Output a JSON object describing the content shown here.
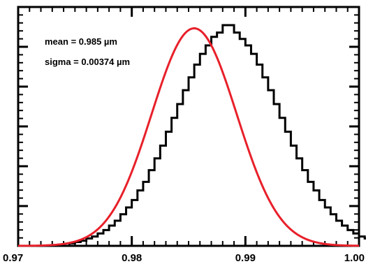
{
  "chart_data": {
    "type": "histogram",
    "title": "",
    "xlabel": "",
    "ylabel": "",
    "xlim": [
      0.97,
      1.0
    ],
    "ylim": [
      0,
      1.12
    ],
    "grid": false,
    "legend": "none",
    "x_ticks": [
      {
        "value": 0.97,
        "label": "0.97"
      },
      {
        "value": 0.98,
        "label": "0.98"
      },
      {
        "value": 0.99,
        "label": "0.99"
      },
      {
        "value": 1.0,
        "label": "1.00"
      }
    ],
    "annotations": [
      {
        "text": "mean = 0.985 µm"
      },
      {
        "text": "sigma = 0.00374 µm"
      }
    ],
    "fit": {
      "mean": 0.98549,
      "sigma": 0.00374,
      "color": "#e8202a"
    },
    "histogram": {
      "bin_width": 0.0005,
      "bin_start": 0.9745,
      "color": "#000000",
      "counts": [
        0.012,
        0.018,
        0.024,
        0.035,
        0.044,
        0.058,
        0.074,
        0.095,
        0.118,
        0.148,
        0.18,
        0.215,
        0.26,
        0.3,
        0.355,
        0.41,
        0.47,
        0.535,
        0.6,
        0.665,
        0.73,
        0.79,
        0.85,
        0.9,
        0.94,
        0.98,
        1.0,
        1.035,
        1.035,
        1.0,
        0.97,
        0.94,
        0.9,
        0.85,
        0.79,
        0.73,
        0.665,
        0.6,
        0.535,
        0.47,
        0.41,
        0.355,
        0.3,
        0.26,
        0.215,
        0.18,
        0.148,
        0.118,
        0.095,
        0.074,
        0.058,
        0.044,
        0.035,
        0.024,
        0.018,
        0.012
      ]
    }
  }
}
